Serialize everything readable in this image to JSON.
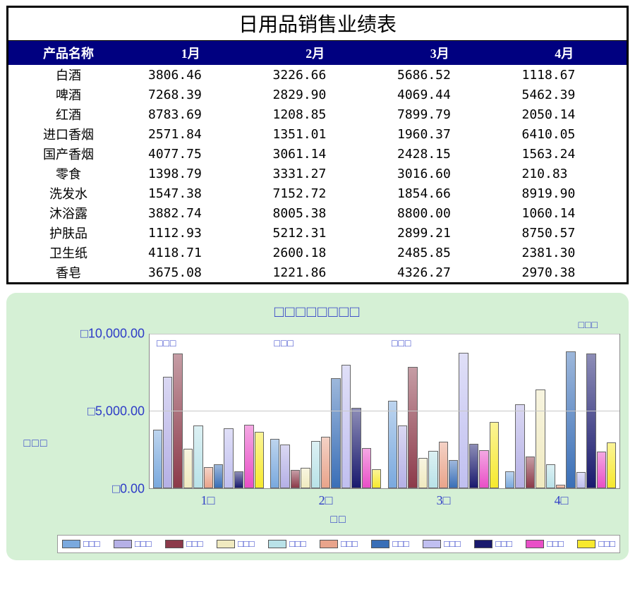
{
  "table": {
    "title": "日用品销售业绩表",
    "header_bg": "#000080",
    "header_fg": "#ffffff",
    "border_color": "#000000",
    "title_fontsize": 28,
    "header_fontsize": 18,
    "cell_fontsize": 18,
    "columns": [
      "产品名称",
      "1月",
      "2月",
      "3月",
      "4月"
    ],
    "rows": [
      [
        "白酒",
        "3806.46",
        "3226.66",
        "5686.52",
        "1118.67"
      ],
      [
        "啤酒",
        "7268.39",
        "2829.90",
        "4069.44",
        "5462.39"
      ],
      [
        "红酒",
        "8783.69",
        "1208.85",
        "7899.79",
        "2050.14"
      ],
      [
        "进口香烟",
        "2571.84",
        "1351.01",
        "1960.37",
        "6410.05"
      ],
      [
        "国产香烟",
        "4077.75",
        "3061.14",
        "2428.15",
        "1563.24"
      ],
      [
        "零食",
        "1398.79",
        "3331.27",
        "3016.60",
        "210.83"
      ],
      [
        "洗发水",
        "1547.38",
        "7152.72",
        "1854.66",
        "8919.90"
      ],
      [
        "沐浴露",
        "3882.74",
        "8005.38",
        "8800.00",
        "1060.14"
      ],
      [
        "护肤品",
        "1112.93",
        "5212.31",
        "2899.21",
        "8750.57"
      ],
      [
        "卫生纸",
        "4118.71",
        "2600.18",
        "2485.85",
        "2381.30"
      ],
      [
        "香皂",
        "3675.08",
        "1221.86",
        "4326.27",
        "2970.38"
      ]
    ]
  },
  "chart": {
    "type": "bar",
    "background_color": "#d5f0d5",
    "plot_background": "#ffffff",
    "grid_color": "#c8c8c8",
    "text_color": "#2e3cc7",
    "title": "□□□□□□□□",
    "title_fontsize": 22,
    "y_axis_label": "□□□",
    "x_axis_title": "□□",
    "ymin": 0,
    "ymax": 10000,
    "ytick_step": 5000,
    "yticks": [
      {
        "value": 10000,
        "label": "□10,000.00"
      },
      {
        "value": 5000,
        "label": "□5,000.00"
      },
      {
        "value": 0,
        "label": "□0.00"
      }
    ],
    "categories": [
      "1□",
      "2□",
      "3□",
      "4□"
    ],
    "group_inside_labels": [
      "□□□",
      "□□□",
      "□□□",
      ""
    ],
    "callout_top_right": "□□□",
    "series": [
      {
        "name": "白酒",
        "label": "□□□",
        "color": "#7aa9de"
      },
      {
        "name": "啤酒",
        "label": "□□□",
        "color": "#b5b0e6"
      },
      {
        "name": "红酒",
        "label": "□□□",
        "color": "#8c3a4a"
      },
      {
        "name": "进口香烟",
        "label": "□□□",
        "color": "#f0eac0"
      },
      {
        "name": "国产香烟",
        "label": "□□□",
        "color": "#b9e2e8"
      },
      {
        "name": "零食",
        "label": "□□□",
        "color": "#e9a48b"
      },
      {
        "name": "洗发水",
        "label": "□□□",
        "color": "#3a6fb7"
      },
      {
        "name": "沐浴露",
        "label": "□□□",
        "color": "#c0bff0"
      },
      {
        "name": "护肤品",
        "label": "□□□",
        "color": "#1a1a6e"
      },
      {
        "name": "卫生纸",
        "label": "□□□",
        "color": "#e94fc7"
      },
      {
        "name": "香皂",
        "label": "□□□",
        "color": "#f7e92e"
      }
    ],
    "data": {
      "1□": [
        3806.46,
        7268.39,
        8783.69,
        2571.84,
        4077.75,
        1398.79,
        1547.38,
        3882.74,
        1112.93,
        4118.71,
        3675.08
      ],
      "2□": [
        3226.66,
        2829.9,
        1208.85,
        1351.01,
        3061.14,
        3331.27,
        7152.72,
        8005.38,
        5212.31,
        2600.18,
        1221.86
      ],
      "3□": [
        5686.52,
        4069.44,
        7899.79,
        1960.37,
        2428.15,
        3016.6,
        1854.66,
        8800.0,
        2899.21,
        2485.85,
        4326.27
      ],
      "4□": [
        1118.67,
        5462.39,
        2050.14,
        6410.05,
        1563.24,
        210.83,
        8919.9,
        1060.14,
        8750.57,
        2381.3,
        2970.38
      ]
    },
    "bar_border_color": "#666666"
  }
}
